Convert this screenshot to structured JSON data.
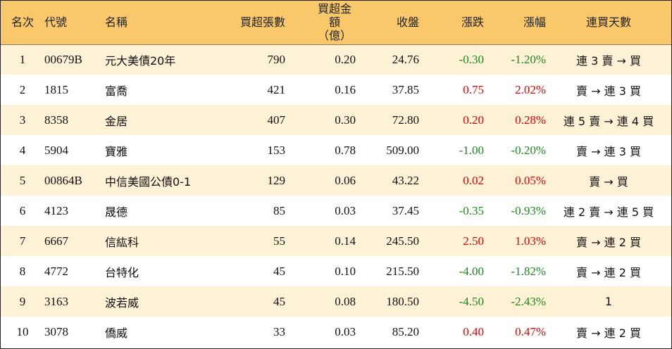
{
  "headers": {
    "rank": "名次",
    "code": "代號",
    "name": "名稱",
    "net_buy_lots": "買超張數",
    "net_buy_amount_line1": "買超金額",
    "net_buy_amount_line2": "（億）",
    "close": "收盤",
    "change": "漲跌",
    "change_pct": "漲幅",
    "streak": "連買天數"
  },
  "rows": [
    {
      "rank": "1",
      "code": "00679B",
      "name": "元大美債20年",
      "lots": "790",
      "amount": "0.20",
      "close": "24.76",
      "change": "-0.30",
      "pct": "-1.20%",
      "dir": "down",
      "streak": "連 3 賣 → 買"
    },
    {
      "rank": "2",
      "code": "1815",
      "name": "富喬",
      "lots": "421",
      "amount": "0.16",
      "close": "37.85",
      "change": "0.75",
      "pct": "2.02%",
      "dir": "up",
      "streak": "賣 → 連 3 買"
    },
    {
      "rank": "3",
      "code": "8358",
      "name": "金居",
      "lots": "407",
      "amount": "0.30",
      "close": "72.80",
      "change": "0.20",
      "pct": "0.28%",
      "dir": "up",
      "streak": "連 5 賣 → 連 4 買"
    },
    {
      "rank": "4",
      "code": "5904",
      "name": "寶雅",
      "lots": "153",
      "amount": "0.78",
      "close": "509.00",
      "change": "-1.00",
      "pct": "-0.20%",
      "dir": "down",
      "streak": "賣 → 連 3 買"
    },
    {
      "rank": "5",
      "code": "00864B",
      "name": "中信美國公債0-1",
      "lots": "129",
      "amount": "0.06",
      "close": "43.22",
      "change": "0.02",
      "pct": "0.05%",
      "dir": "up",
      "streak": "賣 → 買"
    },
    {
      "rank": "6",
      "code": "4123",
      "name": "晟德",
      "lots": "85",
      "amount": "0.03",
      "close": "37.45",
      "change": "-0.35",
      "pct": "-0.93%",
      "dir": "down",
      "streak": "連 2 賣 → 連 5 買"
    },
    {
      "rank": "7",
      "code": "6667",
      "name": "信紘科",
      "lots": "55",
      "amount": "0.14",
      "close": "245.50",
      "change": "2.50",
      "pct": "1.03%",
      "dir": "up",
      "streak": "賣 → 連 2 買"
    },
    {
      "rank": "8",
      "code": "4772",
      "name": "台特化",
      "lots": "45",
      "amount": "0.10",
      "close": "215.50",
      "change": "-4.00",
      "pct": "-1.82%",
      "dir": "down",
      "streak": "賣 → 連 2 買"
    },
    {
      "rank": "9",
      "code": "3163",
      "name": "波若威",
      "lots": "45",
      "amount": "0.08",
      "close": "180.50",
      "change": "-4.50",
      "pct": "-2.43%",
      "dir": "down",
      "streak": "1"
    },
    {
      "rank": "10",
      "code": "3078",
      "name": "僑威",
      "lots": "33",
      "amount": "0.03",
      "close": "85.20",
      "change": "0.40",
      "pct": "0.47%",
      "dir": "up",
      "streak": "賣 → 連 2 買"
    }
  ],
  "colors": {
    "header_bg": "#f9c86b",
    "odd_row_bg": "#fdf1d6",
    "up": "#e00000",
    "down": "#1a8a1a"
  }
}
